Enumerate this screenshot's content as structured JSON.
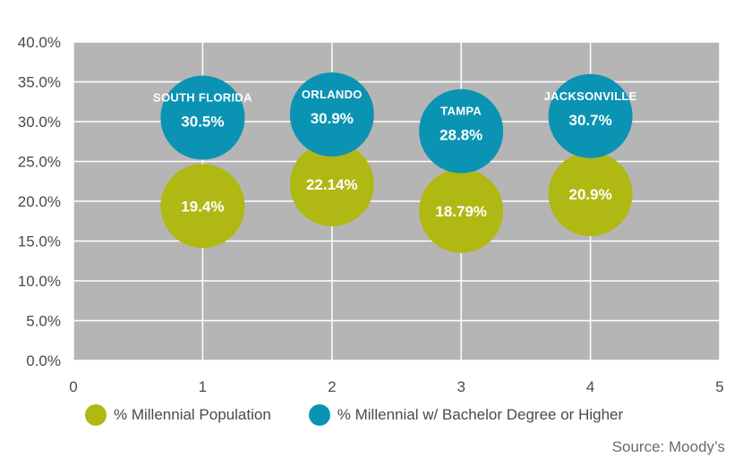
{
  "chart_data": {
    "type": "scatter",
    "xlim": [
      0,
      5
    ],
    "ylim": [
      0,
      40
    ],
    "x_ticks": [
      0,
      1,
      2,
      3,
      4,
      5
    ],
    "y_ticks": [
      "0.0%",
      "5.0%",
      "10.0%",
      "15.0%",
      "20.0%",
      "25.0%",
      "30.0%",
      "35.0%",
      "40.0%"
    ],
    "grid": true,
    "legend_position": "bottom",
    "categories": [
      "SOUTH FLORIDA",
      "ORLANDO",
      "TAMPA",
      "JACKSONVILLE"
    ],
    "series": [
      {
        "name": "% Millennial Population",
        "color": "#b0b813",
        "x": [
          1,
          2,
          3,
          4
        ],
        "y": [
          19.4,
          22.14,
          18.79,
          20.9
        ],
        "labels": [
          "19.4%",
          "22.14%",
          "18.79%",
          "20.9%"
        ]
      },
      {
        "name": "% Millennial w/ Bachelor Degree or Higher",
        "color": "#0b93b3",
        "x": [
          1,
          2,
          3,
          4
        ],
        "y": [
          30.5,
          30.9,
          28.8,
          30.7
        ],
        "labels": [
          "30.5%",
          "30.9%",
          "28.8%",
          "30.7%"
        ]
      }
    ],
    "plot_background": "#b5b5b5",
    "grid_color": "#ffffff"
  },
  "source": "Source: Moody’s"
}
